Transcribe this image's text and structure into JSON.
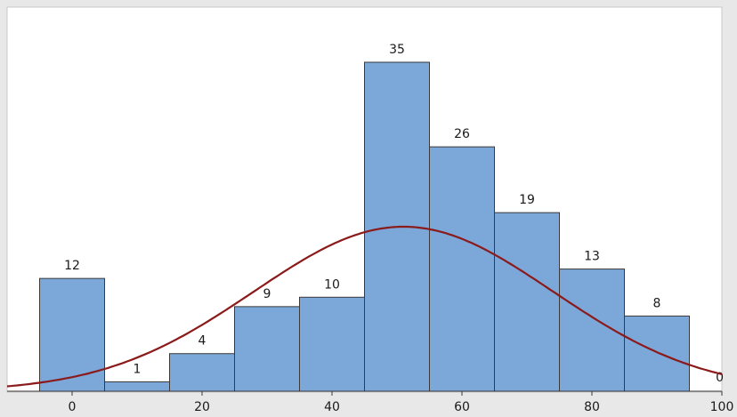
{
  "chart_data": {
    "type": "bar",
    "subtype": "histogram-with-normal-fit",
    "title": "",
    "xlabel": "",
    "ylabel": "",
    "bins": [
      {
        "center": 0,
        "count": 12
      },
      {
        "center": 10,
        "count": 1
      },
      {
        "center": 20,
        "count": 4
      },
      {
        "center": 30,
        "count": 9
      },
      {
        "center": 40,
        "count": 10
      },
      {
        "center": 50,
        "count": 35
      },
      {
        "center": 60,
        "count": 26
      },
      {
        "center": 70,
        "count": 19
      },
      {
        "center": 80,
        "count": 13
      },
      {
        "center": 90,
        "count": 8
      },
      {
        "center": 100,
        "count": 0
      }
    ],
    "bin_width": 10,
    "x_ticks": [
      "0",
      "20",
      "40",
      "60",
      "80",
      "100"
    ],
    "x_tick_values": [
      0,
      20,
      40,
      60,
      80,
      100
    ],
    "xlim": [
      -10,
      100
    ],
    "ylim": [
      0,
      37
    ],
    "fit_curve": {
      "type": "normal",
      "mean": 51,
      "peak_count": 17.5,
      "sigma": 23
    },
    "grid": false,
    "legend": "none",
    "colors": {
      "bar_fill": "#7ba7d9",
      "bar_stroke": "#3a3a3a",
      "curve": "#8b1a1a",
      "plot_background": "#ffffff",
      "frame": "#e8e8e8"
    }
  }
}
